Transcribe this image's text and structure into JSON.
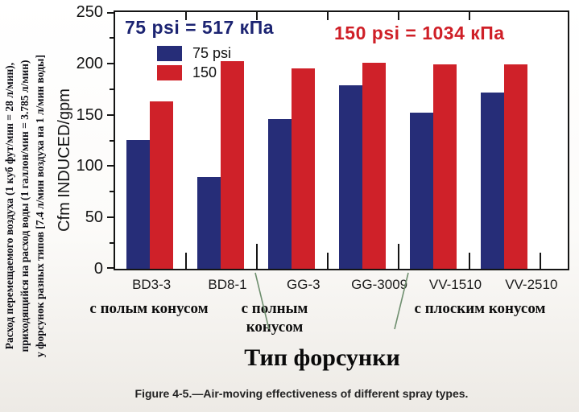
{
  "side_note": {
    "lines": [
      "Расход перемещаемого воздуха (1 куб фут/мин = 28 л/мин),",
      "приходящийся на расход воды (1 галлон/мин = 3.785 л/мин)",
      "у форсунок разных типов [7.4 л/мин воздуха на 1 л/мин воды]"
    ]
  },
  "chart_data": {
    "type": "bar",
    "categories": [
      "BD3-3",
      "BD8-1",
      "GG-3",
      "GG-3009",
      "VV-1510",
      "VV-2510"
    ],
    "series": [
      {
        "name": "75 psi",
        "color": "#262d78",
        "values": [
          125,
          89,
          146,
          179,
          152,
          172
        ]
      },
      {
        "name": "150 psi",
        "color": "#cf2129",
        "values": [
          163,
          202,
          195,
          201,
          199,
          199
        ]
      }
    ],
    "ylabel": "Cfm INDUCED/gpm",
    "xlabel": "Тип форсунки",
    "ylim": [
      0,
      250
    ],
    "yticks": [
      0,
      50,
      100,
      150,
      200,
      250
    ],
    "minor_tick_step": 25,
    "grid": false,
    "legend": {
      "position": "top-left",
      "items": [
        "75 psi",
        "150 psi"
      ]
    },
    "annotations": [
      {
        "text": "75 psi = 517 кПа",
        "color": "#1c2472"
      },
      {
        "text": "150 psi = 1034 кПа",
        "color": "#cf1f27"
      }
    ],
    "group_labels": [
      {
        "text": "с полым конусом",
        "categories": [
          "BD3-3",
          "BD8-1"
        ]
      },
      {
        "text": "с полным конусом",
        "categories": [
          "GG-3",
          "GG-3009"
        ]
      },
      {
        "text": "с плоским конусом",
        "categories": [
          "VV-1510",
          "VV-2510"
        ]
      }
    ],
    "group_divider_color": "#6f8f6f"
  },
  "caption": "Figure 4-5.—Air-moving effectiveness of different spray types."
}
